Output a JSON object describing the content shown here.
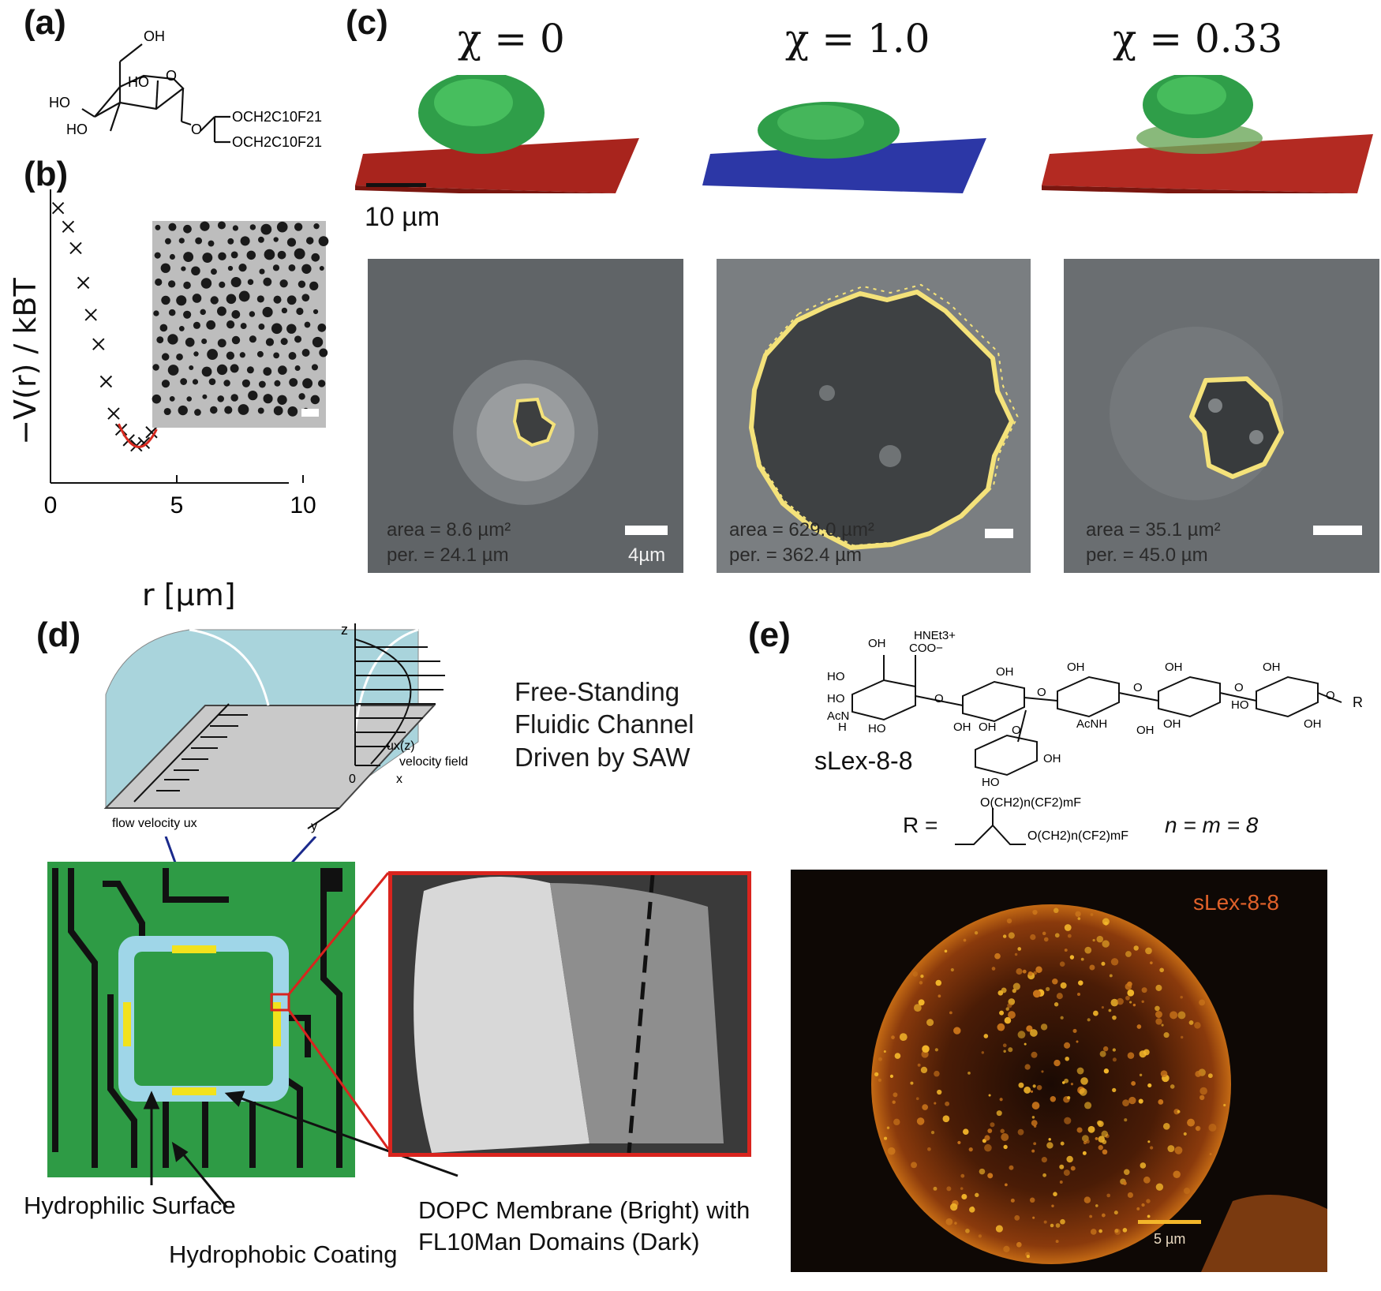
{
  "panels": {
    "a": {
      "label": "(a)",
      "structure": {
        "groups": [
          "OH",
          "HO",
          "HO",
          "HO"
        ],
        "chains": [
          "OCH2C10F21",
          "OCH2C10F21"
        ]
      }
    },
    "b": {
      "label": "(b)",
      "xlabel": "r [µm]",
      "ylabel": "−V(r) / kBT",
      "inset": "dotted-domain-micrograph"
    },
    "c": {
      "label": "(c)",
      "columns": [
        {
          "chi": "χ = 0",
          "area": "area =  8.6 µm²",
          "per": "per. = 24.1 µm",
          "scale_text": "4µm"
        },
        {
          "chi": "χ = 1.0",
          "area": "area = 629.0 µm²",
          "per": "per. = 362.4 µm",
          "scale_text": ""
        },
        {
          "chi": "χ = 0.33",
          "area": "area = 35.1 µm²",
          "per": "per. = 45.0 µm",
          "scale_text": ""
        }
      ],
      "scale_3d": "10 µm",
      "colors": {
        "cell": "#2fa84a",
        "substrate_red": "#b32a22",
        "substrate_blue": "#2c3aa8",
        "outline": "#f4e27a"
      }
    },
    "d": {
      "label": "(d)",
      "title_lines": [
        "Free-Standing",
        "Fluidic Channel",
        "Driven by SAW"
      ],
      "axis_z": "z",
      "axis_x": "x",
      "axis_y": "y",
      "origin": "0",
      "velocity_field_symbol": "ux(z)",
      "velocity_field_label": "velocity field",
      "flow_label": "flow velocity ux",
      "hydrophilic": "Hydrophilic Surface",
      "hydrophobic": "Hydrophobic Coating",
      "membrane_lines": [
        "DOPC Membrane (Bright) with",
        "FL10Man Domains (Dark)"
      ],
      "colors": {
        "chip": "#2e9b45",
        "channel": "#9fd6e8",
        "electrode": "#f2e21c",
        "frame": "#d9241e"
      }
    },
    "e": {
      "label": "(e)",
      "molecule_name": "sLex-8-8",
      "r_definition": "R =",
      "r_chain": "O(CH2)n(CF2)mF",
      "nm": "n = m = 8",
      "groups": [
        "OH",
        "HNEt3+",
        "COO−",
        "HO",
        "HO",
        "AcN",
        "H",
        "HO",
        "OH",
        "OH",
        "OH",
        "OH",
        "AcNH",
        "OH",
        "OH",
        "OH",
        "HO",
        "OH",
        "OH",
        "OH",
        "HO",
        "O",
        "O",
        "O",
        "O",
        "O",
        "O",
        "R"
      ],
      "micrograph_label": "sLex-8-8",
      "scale_text": "5 µm",
      "colors": {
        "label": "#e0612a",
        "glow": "#f3b62a"
      }
    }
  },
  "chart_data": {
    "type": "scatter",
    "title": "",
    "xlabel": "r [µm]",
    "ylabel": "−V(r) / kBT",
    "xlim": [
      0,
      10.5
    ],
    "ylim": [
      -1,
      10
    ],
    "xticks": [
      0,
      5,
      10
    ],
    "series": [
      {
        "marker": "x",
        "x": [
          0.3,
          0.7,
          1.0,
          1.3,
          1.6,
          1.9,
          2.2,
          2.5,
          2.8,
          3.1,
          3.4,
          3.7,
          4.0,
          4.3,
          4.6,
          4.9,
          5.2,
          5.5,
          5.8,
          6.1,
          6.4,
          6.7,
          7.0,
          7.3,
          7.6,
          7.9,
          8.2,
          8.5,
          8.8,
          9.1,
          9.4
        ],
        "y": [
          9.3,
          8.6,
          7.8,
          6.5,
          5.3,
          4.2,
          2.8,
          1.6,
          1.0,
          0.6,
          0.4,
          0.5,
          0.9,
          1.3,
          1.6,
          1.75,
          1.6,
          1.4,
          1.3,
          1.35,
          1.4,
          1.35,
          1.3,
          1.4,
          1.35,
          1.4,
          1.45,
          1.4,
          1.35,
          1.4,
          1.35
        ]
      }
    ],
    "fit_color": "#d82a20"
  }
}
